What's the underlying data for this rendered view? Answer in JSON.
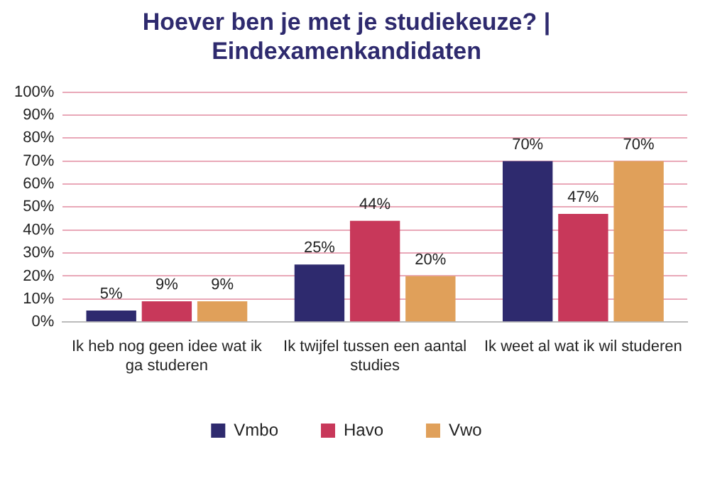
{
  "chart_data": {
    "type": "bar",
    "title": "Hoever ben je met je studiekeuze? | Eindexamenkandidaten",
    "categories": [
      "Ik heb nog geen idee wat ik ga studeren",
      "Ik twijfel tussen een aantal studies",
      "Ik weet al wat ik wil studeren"
    ],
    "series": [
      {
        "name": "Vmbo",
        "color": "#2e2a6e",
        "values": [
          5,
          25,
          70
        ],
        "value_labels": [
          "5%",
          "25%",
          "70%"
        ]
      },
      {
        "name": "Havo",
        "color": "#c8385a",
        "values": [
          9,
          44,
          47
        ],
        "value_labels": [
          "9%",
          "44%",
          "47%"
        ]
      },
      {
        "name": "Vwo",
        "color": "#e0a05a",
        "values": [
          9,
          20,
          70
        ],
        "value_labels": [
          "9%",
          "20%",
          "70%"
        ]
      }
    ],
    "ylim": [
      0,
      100
    ],
    "yticks": [
      {
        "value": 0,
        "label": "0%"
      },
      {
        "value": 10,
        "label": "10%"
      },
      {
        "value": 20,
        "label": "20%"
      },
      {
        "value": 30,
        "label": "30%"
      },
      {
        "value": 40,
        "label": "40%"
      },
      {
        "value": 50,
        "label": "50%"
      },
      {
        "value": 60,
        "label": "60%"
      },
      {
        "value": 70,
        "label": "70%"
      },
      {
        "value": 80,
        "label": "80%"
      },
      {
        "value": 90,
        "label": "90%"
      },
      {
        "value": 100,
        "label": "100%"
      }
    ],
    "grid": "y",
    "legend": "bottom"
  }
}
